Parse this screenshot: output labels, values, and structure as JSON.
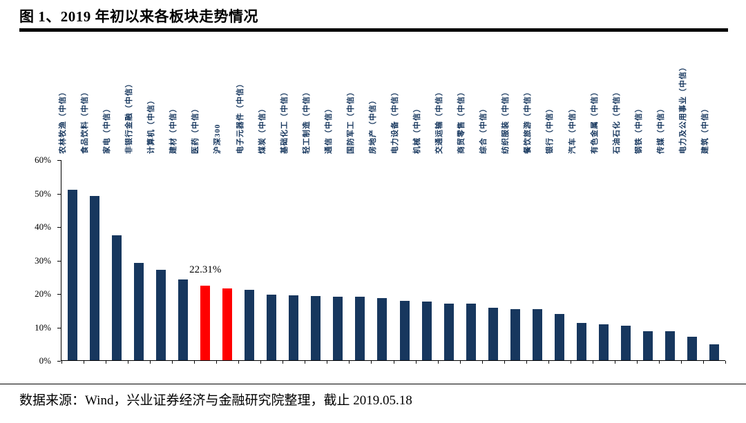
{
  "title": "图 1、2019 年初以来各板块走势情况",
  "footer": {
    "source": "数据来源：Wind，兴业证券经济与金融研究院整理，截止 2019.05.18"
  },
  "colors": {
    "bar": "#17375E",
    "highlight": "#FF0000",
    "label_text": "#17375E",
    "axis": "#000000"
  },
  "chart_data": {
    "type": "bar",
    "title": "图 1、2019 年初以来各板块走势情况",
    "xlabel": "",
    "ylabel": "",
    "ylim": [
      0,
      60
    ],
    "yticks": [
      "0%",
      "10%",
      "20%",
      "30%",
      "40%",
      "50%",
      "60%"
    ],
    "grid": "off",
    "legend": "none",
    "categories": [
      "农林牧渔（中信）",
      "食品饮料（中信）",
      "家电（中信）",
      "非银行金融（中信）",
      "计算机（中信）",
      "建材（中信）",
      "医药（中信）",
      "沪深300",
      "电子元器件（中信）",
      "煤炭（中信）",
      "基础化工（中信）",
      "轻工制造（中信）",
      "通信（中信）",
      "国防军工（中信）",
      "房地产（中信）",
      "电力设备（中信）",
      "机械（中信）",
      "交通运输（中信）",
      "商贸零售（中信）",
      "综合（中信）",
      "纺织服装（中信）",
      "餐饮旅游（中信）",
      "银行（中信）",
      "汽车（中信）",
      "有色金属（中信）",
      "石油石化（中信）",
      "钢铁（中信）",
      "传媒（中信）",
      "电力及公用事业（中信）",
      "建筑（中信）"
    ],
    "values": [
      51,
      49,
      37.3,
      29,
      27,
      24.2,
      22.31,
      21.4,
      21,
      19.5,
      19.3,
      19.1,
      19,
      19,
      18.5,
      17.7,
      17.6,
      17,
      16.9,
      15.6,
      15.3,
      15.2,
      13.9,
      11.2,
      10.8,
      10.3,
      8.6,
      8.6,
      7,
      4.8
    ],
    "highlight_indices": [
      6,
      7
    ],
    "annotation": {
      "text": "22.31%",
      "index": 6,
      "target": "医药（中信）"
    }
  }
}
